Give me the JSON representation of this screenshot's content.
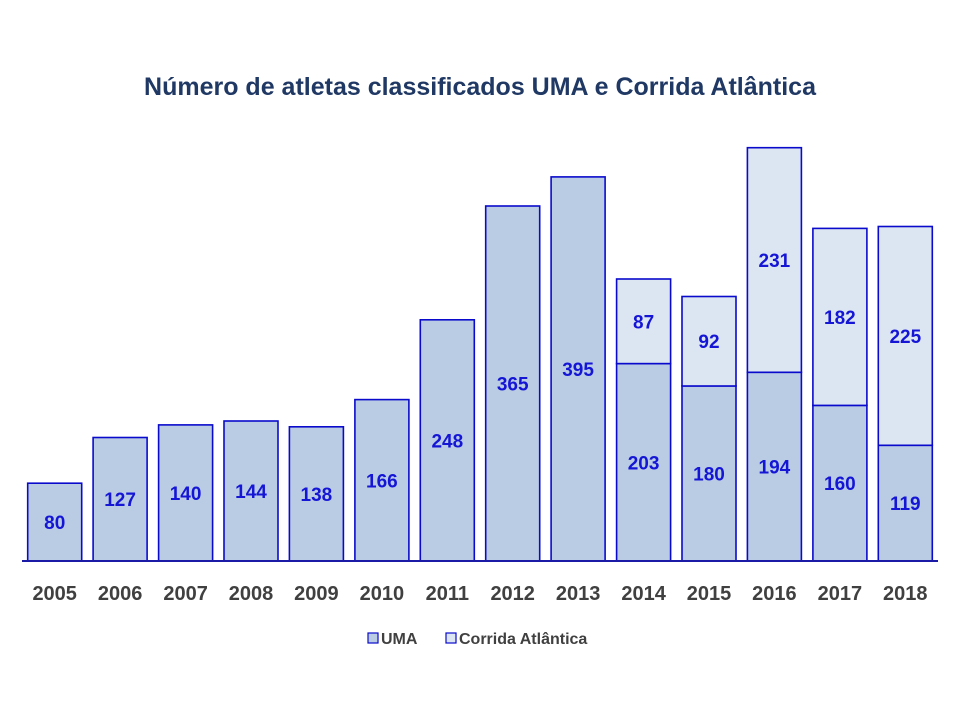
{
  "chart_data": {
    "type": "bar",
    "stacked": true,
    "title": "Número de atletas classificados UMA e Corrida Atlântica",
    "xlabel": "",
    "ylabel": "",
    "ylim": [
      0,
      450
    ],
    "grid": false,
    "legend_position": "bottom",
    "categories": [
      "2005",
      "2006",
      "2007",
      "2008",
      "2009",
      "2010",
      "2011",
      "2012",
      "2013",
      "2014",
      "2015",
      "2016",
      "2017",
      "2018"
    ],
    "series": [
      {
        "name": "UMA",
        "values": [
          80,
          127,
          140,
          144,
          138,
          166,
          248,
          365,
          395,
          203,
          180,
          194,
          160,
          119
        ],
        "color": "#b9cce4",
        "border": "#0a0acc"
      },
      {
        "name": "Corrida Atlântica",
        "values": [
          null,
          null,
          null,
          null,
          null,
          null,
          null,
          null,
          null,
          87,
          92,
          231,
          182,
          225
        ],
        "color": "#dce6f2",
        "border": "#0a0acc"
      }
    ]
  },
  "colors": {
    "title": "#1f3864",
    "ticks": "#404040",
    "labels": "#1515d6",
    "axis": "#1a1aa6"
  }
}
